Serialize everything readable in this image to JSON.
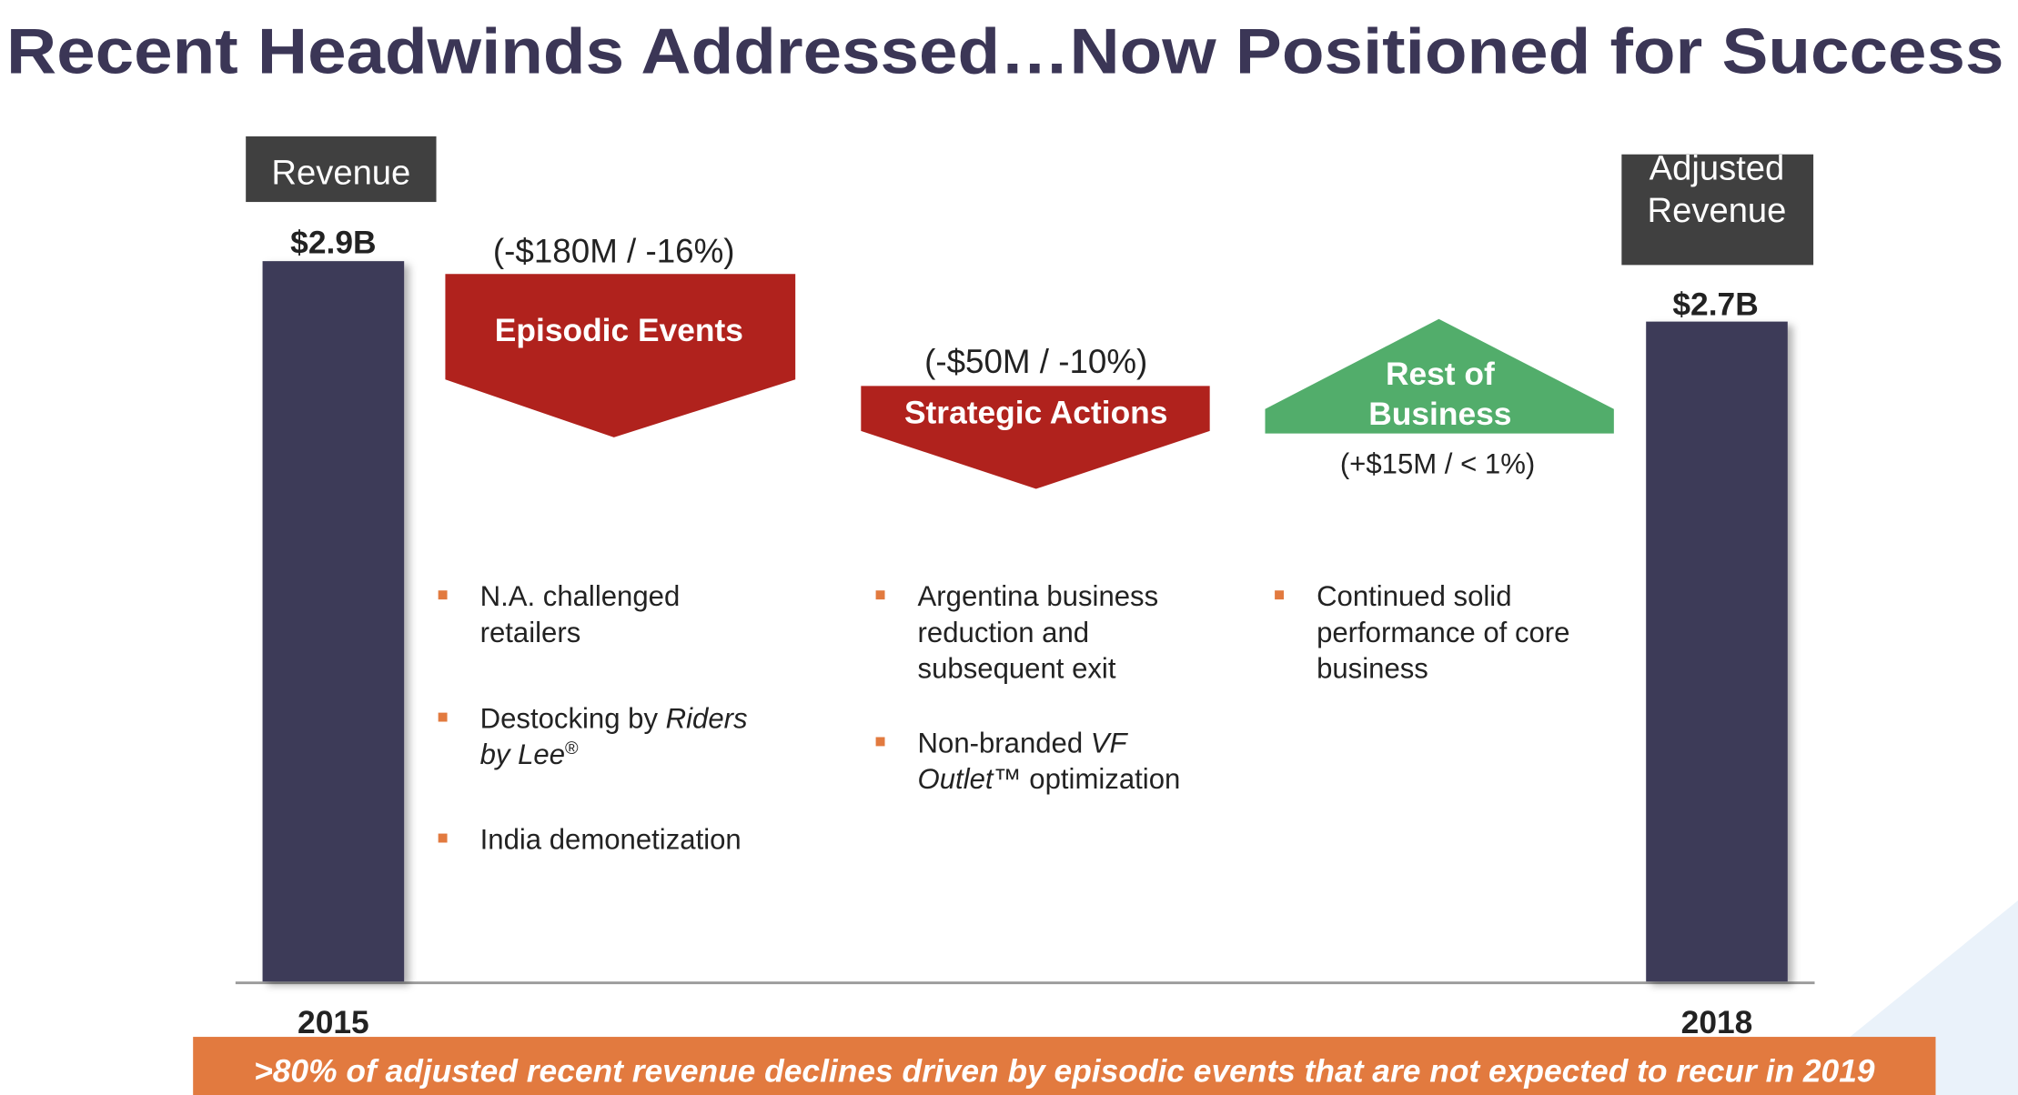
{
  "title": "Recent Headwinds Addressed…Now Positioned for Success",
  "start": {
    "label": [
      "Revenue"
    ],
    "value": "$2.9B",
    "year": "2015"
  },
  "end": {
    "label": [
      "Adjusted",
      "Revenue"
    ],
    "value": "$2.7B",
    "year": "2018"
  },
  "drivers": [
    {
      "change": "(-$180M / -16%)",
      "label": [
        "Episodic Events"
      ],
      "bullets": [
        [
          [
            {
              "text": "N.A. challenged"
            }
          ],
          [
            {
              "text": "retailers"
            }
          ]
        ],
        [
          [
            {
              "text": "Destocking by "
            },
            {
              "text": "Riders",
              "italic": true
            }
          ],
          [
            {
              "text": "by Lee",
              "italic": true
            },
            {
              "text": "®",
              "superscript": true
            }
          ]
        ],
        [
          [
            {
              "text": "India demonetization"
            }
          ]
        ]
      ]
    },
    {
      "change": "(-$50M / -10%)",
      "label": [
        "Strategic Actions"
      ],
      "bullets": [
        [
          [
            {
              "text": "Argentina business"
            }
          ],
          [
            {
              "text": "reduction and"
            }
          ],
          [
            {
              "text": "subsequent exit"
            }
          ]
        ],
        [
          [
            {
              "text": "Non-branded "
            },
            {
              "text": "VF",
              "italic": true
            }
          ],
          [
            {
              "text": "Outlet",
              "italic": true
            },
            {
              "text": "™ optimization"
            }
          ]
        ]
      ]
    },
    {
      "change": "(+$15M / < 1%)",
      "label": [
        "Rest of",
        "Business"
      ],
      "bullets": [
        [
          [
            {
              "text": "Continued solid"
            }
          ],
          [
            {
              "text": "performance of core"
            }
          ],
          [
            {
              "text": "business"
            }
          ]
        ]
      ]
    }
  ],
  "footer": ">80% of adjusted recent revenue declines driven by episodic events that are not expected to recur in 2019"
}
